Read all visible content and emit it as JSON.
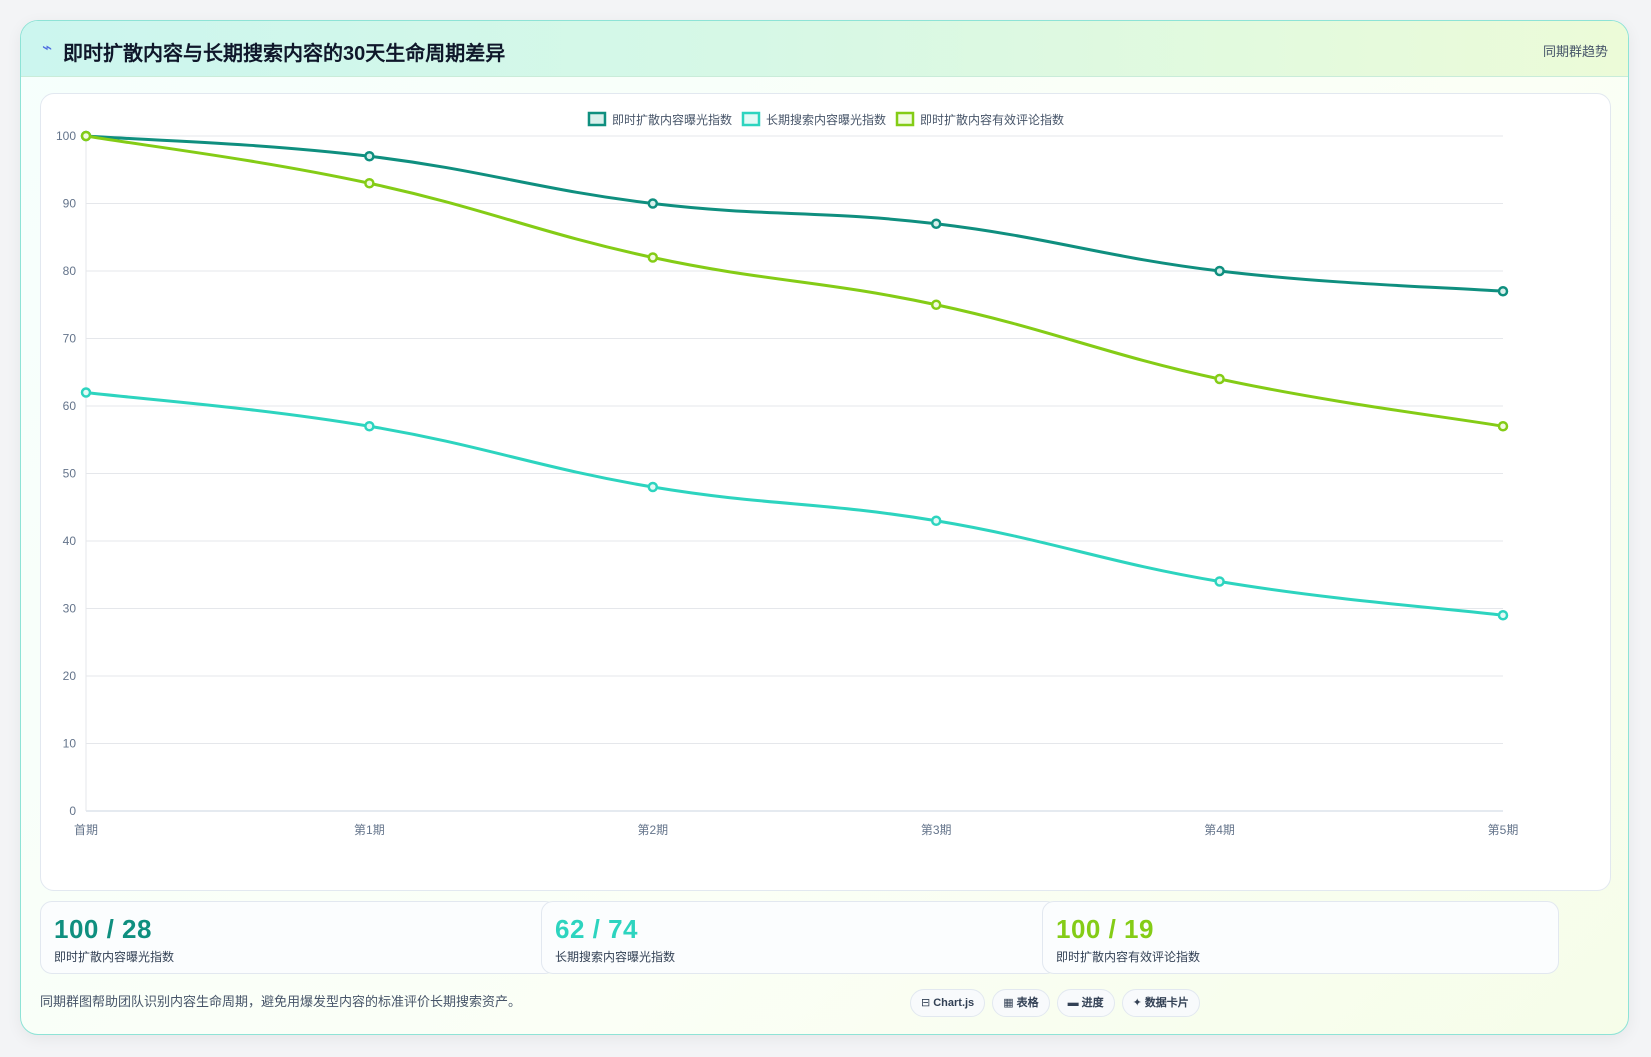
{
  "header": {
    "icon": "trend-line-icon",
    "title": "即时扩散内容与长期搜索内容的30天生命周期差异",
    "tag": "同期群趋势"
  },
  "chart_data": {
    "type": "line",
    "categories": [
      "首期",
      "第1期",
      "第2期",
      "第3期",
      "第4期",
      "第5期"
    ],
    "ylim": [
      0,
      100
    ],
    "yticks": [
      0,
      10,
      20,
      30,
      40,
      50,
      60,
      70,
      80,
      90,
      100
    ],
    "grid": true,
    "legend_position": "top-center",
    "series": [
      {
        "name": "即时扩散内容曝光指数",
        "color": "#0f8f7f",
        "fill": "#d9f0ec",
        "values": [
          100,
          97,
          90,
          87,
          80,
          77
        ]
      },
      {
        "name": "长期搜索内容曝光指数",
        "color": "#2dd4bf",
        "fill": "#e3faf6",
        "values": [
          62,
          57,
          48,
          43,
          34,
          29
        ]
      },
      {
        "name": "即时扩散内容有效评论指数",
        "color": "#84cc16",
        "fill": "#f1fbe2",
        "values": [
          100,
          93,
          82,
          75,
          64,
          57
        ]
      }
    ]
  },
  "stats": [
    {
      "value": "100 / 28",
      "label": "即时扩散内容曝光指数",
      "color": "#0f8f7f"
    },
    {
      "value": "62 / 74",
      "label": "长期搜索内容曝光指数",
      "color": "#2dd4bf"
    },
    {
      "value": "100 / 19",
      "label": "即时扩散内容有效评论指数",
      "color": "#84cc16"
    }
  ],
  "footnote": "同期群图帮助团队识别内容生命周期，避免用爆发型内容的标准评价长期搜索资产。",
  "pills": [
    {
      "icon": "⊟",
      "label": "Chart.js"
    },
    {
      "icon": "▦",
      "label": "表格"
    },
    {
      "icon": "▬",
      "label": "进度"
    },
    {
      "icon": "✦",
      "label": "数据卡片"
    }
  ]
}
